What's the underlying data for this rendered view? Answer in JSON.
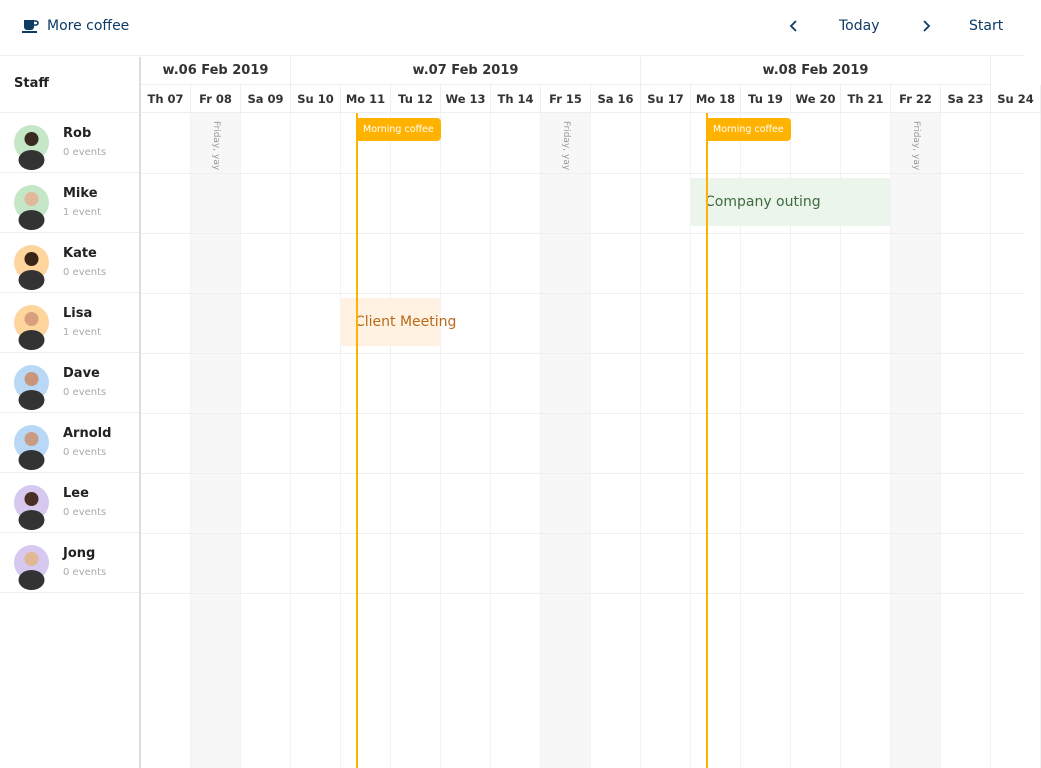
{
  "header": {
    "brand": "More coffee",
    "brand_icon": "coffee-cup-icon",
    "today": "Today",
    "start": "Start",
    "brand_color": "#0d3b66"
  },
  "staff_label": "Staff",
  "staff": [
    {
      "name": "Rob",
      "events": "0 events",
      "bg": "#c6e6c8",
      "skin": "#3b2a20"
    },
    {
      "name": "Mike",
      "events": "1 event",
      "bg": "#c6e6c8",
      "skin": "#e2b89a"
    },
    {
      "name": "Kate",
      "events": "0 events",
      "bg": "#ffd59e",
      "skin": "#3a2418"
    },
    {
      "name": "Lisa",
      "events": "1 event",
      "bg": "#ffd59e",
      "skin": "#d9a07e"
    },
    {
      "name": "Dave",
      "events": "0 events",
      "bg": "#b9d8f5",
      "skin": "#c9967a"
    },
    {
      "name": "Arnold",
      "events": "0 events",
      "bg": "#b9d8f5",
      "skin": "#c79b84"
    },
    {
      "name": "Lee",
      "events": "0 events",
      "bg": "#d7c8ef",
      "skin": "#4a3024"
    },
    {
      "name": "Jong",
      "events": "0 events",
      "bg": "#d7c8ef",
      "skin": "#e0b894"
    }
  ],
  "weeks": [
    "w.06 Feb 2019",
    "w.07 Feb 2019",
    "w.08 Feb 2019"
  ],
  "days": [
    "Th 07",
    "Fr 08",
    "Sa 09",
    "Su 10",
    "Mo 11",
    "Tu 12",
    "We 13",
    "Th 14",
    "Fr 15",
    "Sa 16",
    "Su 17",
    "Mo 18",
    "Tu 19",
    "We 20",
    "Th 21",
    "Fr 22",
    "Sa 23",
    "Su 24"
  ],
  "friday_label": "Friday, yay",
  "recurring": "Morning coffee",
  "events": {
    "outing": "Company outing",
    "client": "Client Meeting"
  },
  "colors": {
    "accent": "#ffb200",
    "outing_bg": "#ebf5ec",
    "outing_text": "#3f6b3f",
    "client_bg": "#fff2e3",
    "client_text": "#b86a1a"
  }
}
